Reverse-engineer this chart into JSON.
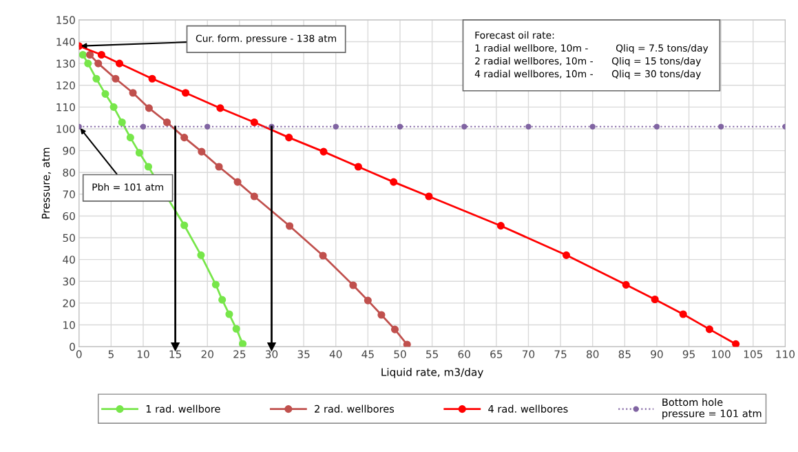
{
  "chart_data": {
    "type": "line",
    "xlabel": "Liquid rate, m3/day",
    "ylabel": "Pressure, atm",
    "xlim": [
      0,
      110
    ],
    "ylim": [
      0,
      150
    ],
    "xticks": [
      0,
      5,
      10,
      15,
      20,
      25,
      30,
      35,
      40,
      45,
      50,
      55,
      60,
      65,
      70,
      75,
      80,
      85,
      90,
      95,
      100,
      105,
      110
    ],
    "yticks": [
      0,
      10,
      20,
      30,
      40,
      50,
      60,
      70,
      80,
      90,
      100,
      110,
      120,
      130,
      140,
      150
    ],
    "grid": true,
    "legend": "bottom",
    "marker": "circle",
    "series": [
      {
        "name": "1 rad. wellbore",
        "color": "#77e64a",
        "x": [
          0.6,
          1.4,
          2.7,
          4.1,
          5.4,
          6.7,
          8.0,
          9.4,
          10.8,
          16.4,
          19,
          21.3,
          22.3,
          23.4,
          24.5,
          25.5
        ],
        "values": [
          134,
          130,
          123,
          116,
          110,
          103,
          96,
          89,
          82.6,
          55.7,
          42,
          28.5,
          21.5,
          14.9,
          8.2,
          1.3
        ]
      },
      {
        "name": "2 rad. wellbores",
        "color": "#c0504d",
        "x": [
          1.7,
          3.0,
          5.7,
          8.4,
          10.9,
          13.7,
          16.4,
          19.1,
          21.8,
          24.7,
          27.3,
          32.8,
          38,
          42.7,
          45,
          47.1,
          49.2,
          51.1
        ],
        "values": [
          134,
          130,
          123,
          116.5,
          109.5,
          103,
          96,
          89.5,
          82.6,
          75.6,
          69,
          55.4,
          41.8,
          28.2,
          21.2,
          14.6,
          7.9,
          1
        ]
      },
      {
        "name": "4 rad. wellbores",
        "color": "#ff0000",
        "x": [
          0,
          3.5,
          6.3,
          11.4,
          16.6,
          22,
          27.3,
          32.7,
          38.1,
          43.5,
          49,
          54.5,
          65.7,
          75.9,
          85.2,
          89.7,
          94.1,
          98.2,
          102.3
        ],
        "values": [
          138,
          134,
          130,
          123,
          116.5,
          109.5,
          103,
          96,
          89.5,
          82.6,
          75.6,
          69,
          55.5,
          42,
          28.4,
          21.7,
          14.9,
          8.0,
          1.2
        ]
      },
      {
        "name": "Bottom hole\npressure = 101 atm",
        "color": "#8064a2",
        "line_style": "dotted",
        "x": [
          0,
          10,
          20,
          30,
          40,
          50,
          60,
          70,
          80,
          90,
          100,
          110
        ],
        "values": [
          101,
          101,
          101,
          101,
          101,
          101,
          101,
          101,
          101,
          101,
          101,
          101
        ]
      }
    ],
    "ref_lines": [
      {
        "axis": "x",
        "value": 15,
        "color": "#000000"
      },
      {
        "axis": "x",
        "value": 30,
        "color": "#000000"
      }
    ],
    "annotations": [
      {
        "text": "Cur. form. pressure - 138 atm",
        "x": 0,
        "y": 138
      },
      {
        "text": "Pbh = 101 atm",
        "x": 0,
        "y": 101
      },
      "Forecast oil rate:\n1 radial wellbore, 10m -         Qliq = 7.5 tons/day\n2 radial wellbores, 10m -      Qliq = 15 tons/day\n4 radial wellbores, 10m -      Qliq = 30 tons/day"
    ]
  }
}
